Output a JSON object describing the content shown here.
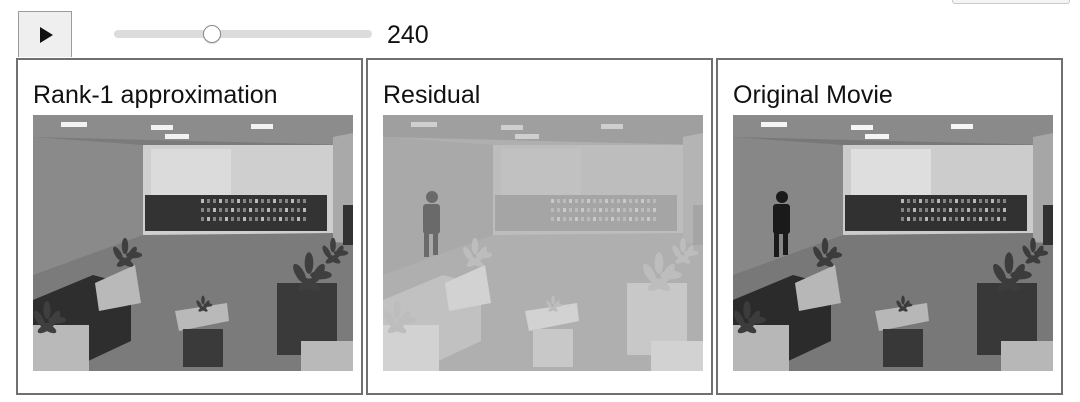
{
  "controls": {
    "play_icon": "play-icon",
    "slider_value": 240,
    "slider_fraction": 0.38,
    "value_label": "240"
  },
  "panels": [
    {
      "title": "Rank-1 approximation",
      "tone": "background"
    },
    {
      "title": "Residual",
      "tone": "residual"
    },
    {
      "title": "Original Movie",
      "tone": "original"
    }
  ],
  "colors": {
    "panel_border": "#707070",
    "slider_track": "#dcdcdc",
    "button_background": "#efefef"
  }
}
